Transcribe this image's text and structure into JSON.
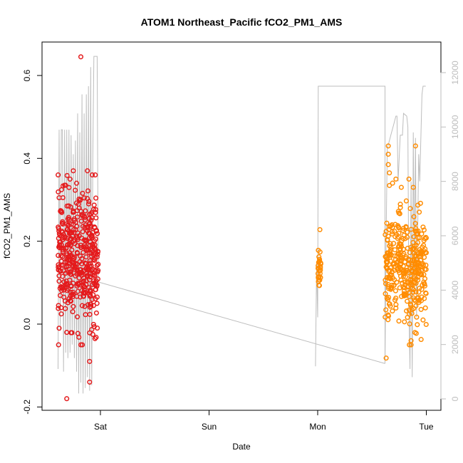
{
  "chart_data": {
    "type": "scatter",
    "title": "ATOM1 Northeast_Pacific fCO2_PM1_AMS",
    "xlabel": "Date",
    "ylabel": "fCO2_PM1_AMS",
    "x_tick_labels": [
      "Sat",
      "Sun",
      "Mon",
      "Tue"
    ],
    "x_range_days": [
      -0.42,
      3.05
    ],
    "y_range": [
      -0.2,
      0.65
    ],
    "y_ticks": [
      "-0.2",
      "0.0",
      "0.2",
      "0.4",
      "0.6"
    ],
    "y2_range": [
      0,
      12800
    ],
    "y2_ticks": [
      "0",
      "2000",
      "4000",
      "6000",
      "8000",
      "10000",
      "12000"
    ],
    "grid": false,
    "colors": {
      "series_red": "#e41a1c",
      "series_orange": "#ff8c00",
      "altitude_line": "#bdbdbd"
    },
    "series": [
      {
        "color": "#e41a1c",
        "segments": [
          {
            "x_start": -0.39,
            "x_end": -0.02,
            "count": 420,
            "y_center": 0.16,
            "y_spread": 0.075
          }
        ],
        "outliers": [
          {
            "x": -0.18,
            "y": 0.645
          },
          {
            "x": -0.31,
            "y": -0.18
          },
          {
            "x": -0.1,
            "y": -0.14
          },
          {
            "x": -0.1,
            "y": -0.09
          },
          {
            "x": -0.18,
            "y": -0.05
          },
          {
            "x": -0.38,
            "y": 0.305
          },
          {
            "x": -0.33,
            "y": 0.335
          },
          {
            "x": -0.25,
            "y": 0.37
          },
          {
            "x": -0.12,
            "y": 0.37
          },
          {
            "x": -0.28,
            "y": 0.35
          },
          {
            "x": -0.22,
            "y": 0.34
          },
          {
            "x": -0.38,
            "y": -0.01
          },
          {
            "x": -0.31,
            "y": -0.02
          },
          {
            "x": -0.05,
            "y": -0.035
          },
          {
            "x": -0.07,
            "y": -0.025
          }
        ]
      },
      {
        "color": "#ff8c00",
        "segments": [
          {
            "x_start": 2.0,
            "x_end": 2.03,
            "count": 28,
            "y_center": 0.13,
            "y_spread": 0.02
          },
          {
            "x_start": 2.62,
            "x_end": 3.0,
            "count": 360,
            "y_center": 0.135,
            "y_spread": 0.065
          }
        ],
        "outliers": [
          {
            "x": 2.02,
            "y": 0.228
          },
          {
            "x": 2.63,
            "y": -0.082
          },
          {
            "x": 2.65,
            "y": 0.43
          },
          {
            "x": 2.65,
            "y": 0.41
          },
          {
            "x": 2.65,
            "y": 0.385
          },
          {
            "x": 2.66,
            "y": 0.365
          },
          {
            "x": 2.72,
            "y": 0.35
          },
          {
            "x": 2.9,
            "y": 0.43
          },
          {
            "x": 2.86,
            "y": -0.05
          },
          {
            "x": 2.86,
            "y": -0.04
          },
          {
            "x": 2.97,
            "y": 0.01
          },
          {
            "x": 2.84,
            "y": 0.35
          },
          {
            "x": 2.88,
            "y": 0.33
          },
          {
            "x": 2.77,
            "y": 0.33
          }
        ]
      }
    ],
    "altitude_line": {
      "axis": "right",
      "points": [
        [
          -0.39,
          1100
        ],
        [
          -0.38,
          9900
        ],
        [
          -0.37,
          2500
        ],
        [
          -0.36,
          9900
        ],
        [
          -0.35,
          9900
        ],
        [
          -0.34,
          1000
        ],
        [
          -0.33,
          9900
        ],
        [
          -0.32,
          1700
        ],
        [
          -0.31,
          9900
        ],
        [
          -0.3,
          1500
        ],
        [
          -0.29,
          9900
        ],
        [
          -0.28,
          1700
        ],
        [
          -0.27,
          9700
        ],
        [
          -0.26,
          2000
        ],
        [
          -0.25,
          9000
        ],
        [
          -0.24,
          1500
        ],
        [
          -0.23,
          9500
        ],
        [
          -0.22,
          1000
        ],
        [
          -0.21,
          10500
        ],
        [
          -0.2,
          200
        ],
        [
          -0.19,
          9800
        ],
        [
          -0.18,
          600
        ],
        [
          -0.17,
          11200
        ],
        [
          -0.16,
          200
        ],
        [
          -0.15,
          10500
        ],
        [
          -0.14,
          400
        ],
        [
          -0.13,
          11200
        ],
        [
          -0.12,
          800
        ],
        [
          -0.11,
          11500
        ],
        [
          -0.1,
          300
        ],
        [
          -0.09,
          12200
        ],
        [
          -0.08,
          500
        ],
        [
          -0.07,
          9000
        ],
        [
          -0.06,
          12600
        ],
        [
          -0.05,
          12600
        ],
        [
          -0.04,
          12600
        ],
        [
          -0.03,
          12600
        ],
        [
          -0.02,
          4300
        ],
        [
          1.98,
          1200
        ],
        [
          1.99,
          5000
        ],
        [
          2.0,
          3000
        ],
        [
          2.005,
          11500
        ],
        [
          2.3,
          11500
        ],
        [
          2.6,
          11500
        ],
        [
          2.62,
          11500
        ],
        [
          2.62,
          1300
        ],
        [
          2.63,
          6000
        ],
        [
          2.64,
          9200
        ],
        [
          2.66,
          9500
        ],
        [
          2.68,
          9800
        ],
        [
          2.7,
          10100
        ],
        [
          2.72,
          10400
        ],
        [
          2.73,
          10400
        ],
        [
          2.74,
          8000
        ],
        [
          2.76,
          9700
        ],
        [
          2.78,
          9700
        ],
        [
          2.79,
          10500
        ],
        [
          2.82,
          10400
        ],
        [
          2.83,
          10000
        ],
        [
          2.84,
          3200
        ],
        [
          2.85,
          1100
        ],
        [
          2.86,
          8000
        ],
        [
          2.87,
          800
        ],
        [
          2.88,
          9800
        ],
        [
          2.89,
          4500
        ],
        [
          2.9,
          9600
        ],
        [
          2.91,
          3000
        ],
        [
          2.93,
          9000
        ],
        [
          2.94,
          8000
        ],
        [
          2.96,
          11200
        ],
        [
          2.97,
          11500
        ],
        [
          2.99,
          11500
        ],
        [
          2.995,
          11500
        ]
      ],
      "long_descent": [
        [
          -0.02,
          4300
        ],
        [
          2.62,
          1300
        ]
      ]
    }
  }
}
